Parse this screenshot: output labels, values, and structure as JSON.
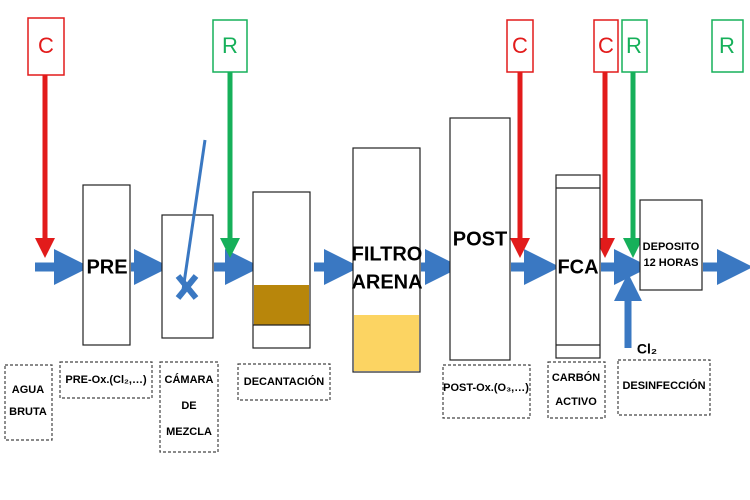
{
  "markers": [
    "C",
    "R",
    "C",
    "C",
    "R",
    "R"
  ],
  "units": {
    "pre": "PRE",
    "filter": [
      "FILTRO",
      "ARENA"
    ],
    "post": "POST",
    "fca": "FCA",
    "deposit": [
      "DEPOSITO",
      "12 HORAS"
    ]
  },
  "stages": {
    "raw_water": [
      "AGUA",
      "BRUTA"
    ],
    "pre_ox": "PRE-Ox.(Cl₂,…)",
    "mixing": [
      "CÁMARA",
      "DE",
      "MEZCLA"
    ],
    "decantation": "DECANTACIÓN",
    "post_ox": "POST-Ox.(O₃,…)",
    "carbon": [
      "CARBÓN",
      "ACTIVO"
    ],
    "disinfection": "DESINFECCIÓN"
  },
  "chlorine": "Cl₂"
}
